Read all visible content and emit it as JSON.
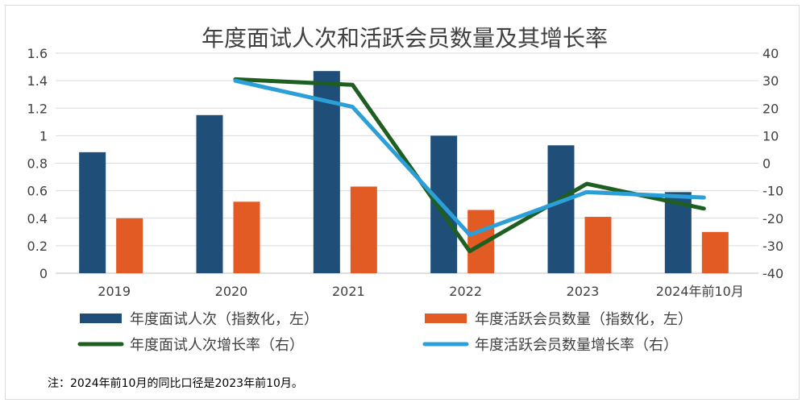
{
  "chart_data": {
    "type": "bar",
    "title": "年度面试人次和活跃会员数量及其增长率",
    "categories": [
      "2019",
      "2020",
      "2021",
      "2022",
      "2023",
      "2024年前10月"
    ],
    "left_axis": {
      "ylim": [
        0,
        1.6
      ],
      "ticks": [
        "0",
        "0.2",
        "0.4",
        "0.6",
        "0.8",
        "1",
        "1.2",
        "1.4",
        "1.6"
      ]
    },
    "right_axis": {
      "ylim": [
        -40,
        40
      ],
      "ticks": [
        "-40",
        "-30",
        "-20",
        "-10",
        "0",
        "10",
        "20",
        "30",
        "40"
      ]
    },
    "series": [
      {
        "name": "年度面试人次（指数化，左）",
        "type": "bar",
        "axis": "left",
        "color": "#1f4e79",
        "values": [
          0.88,
          1.15,
          1.47,
          1.0,
          0.93,
          0.59
        ]
      },
      {
        "name": "年度活跃会员数量（指数化，左）",
        "type": "bar",
        "axis": "left",
        "color": "#e35b24",
        "values": [
          0.4,
          0.52,
          0.63,
          0.46,
          0.41,
          0.3
        ]
      },
      {
        "name": "年度面试人次增长率（右）",
        "type": "line",
        "axis": "right",
        "color": "#1e5e20",
        "values": [
          null,
          30.5,
          28.5,
          -32.0,
          -7.5,
          -16.5
        ]
      },
      {
        "name": "年度活跃会员数量增长率（右）",
        "type": "line",
        "axis": "right",
        "color": "#2b9fd8",
        "values": [
          null,
          30.0,
          20.5,
          -26.0,
          -10.5,
          -12.5
        ]
      }
    ],
    "grid": true,
    "legend_position": "bottom"
  },
  "note": "注：2024年前10月的同比口径是2023年前10月。"
}
